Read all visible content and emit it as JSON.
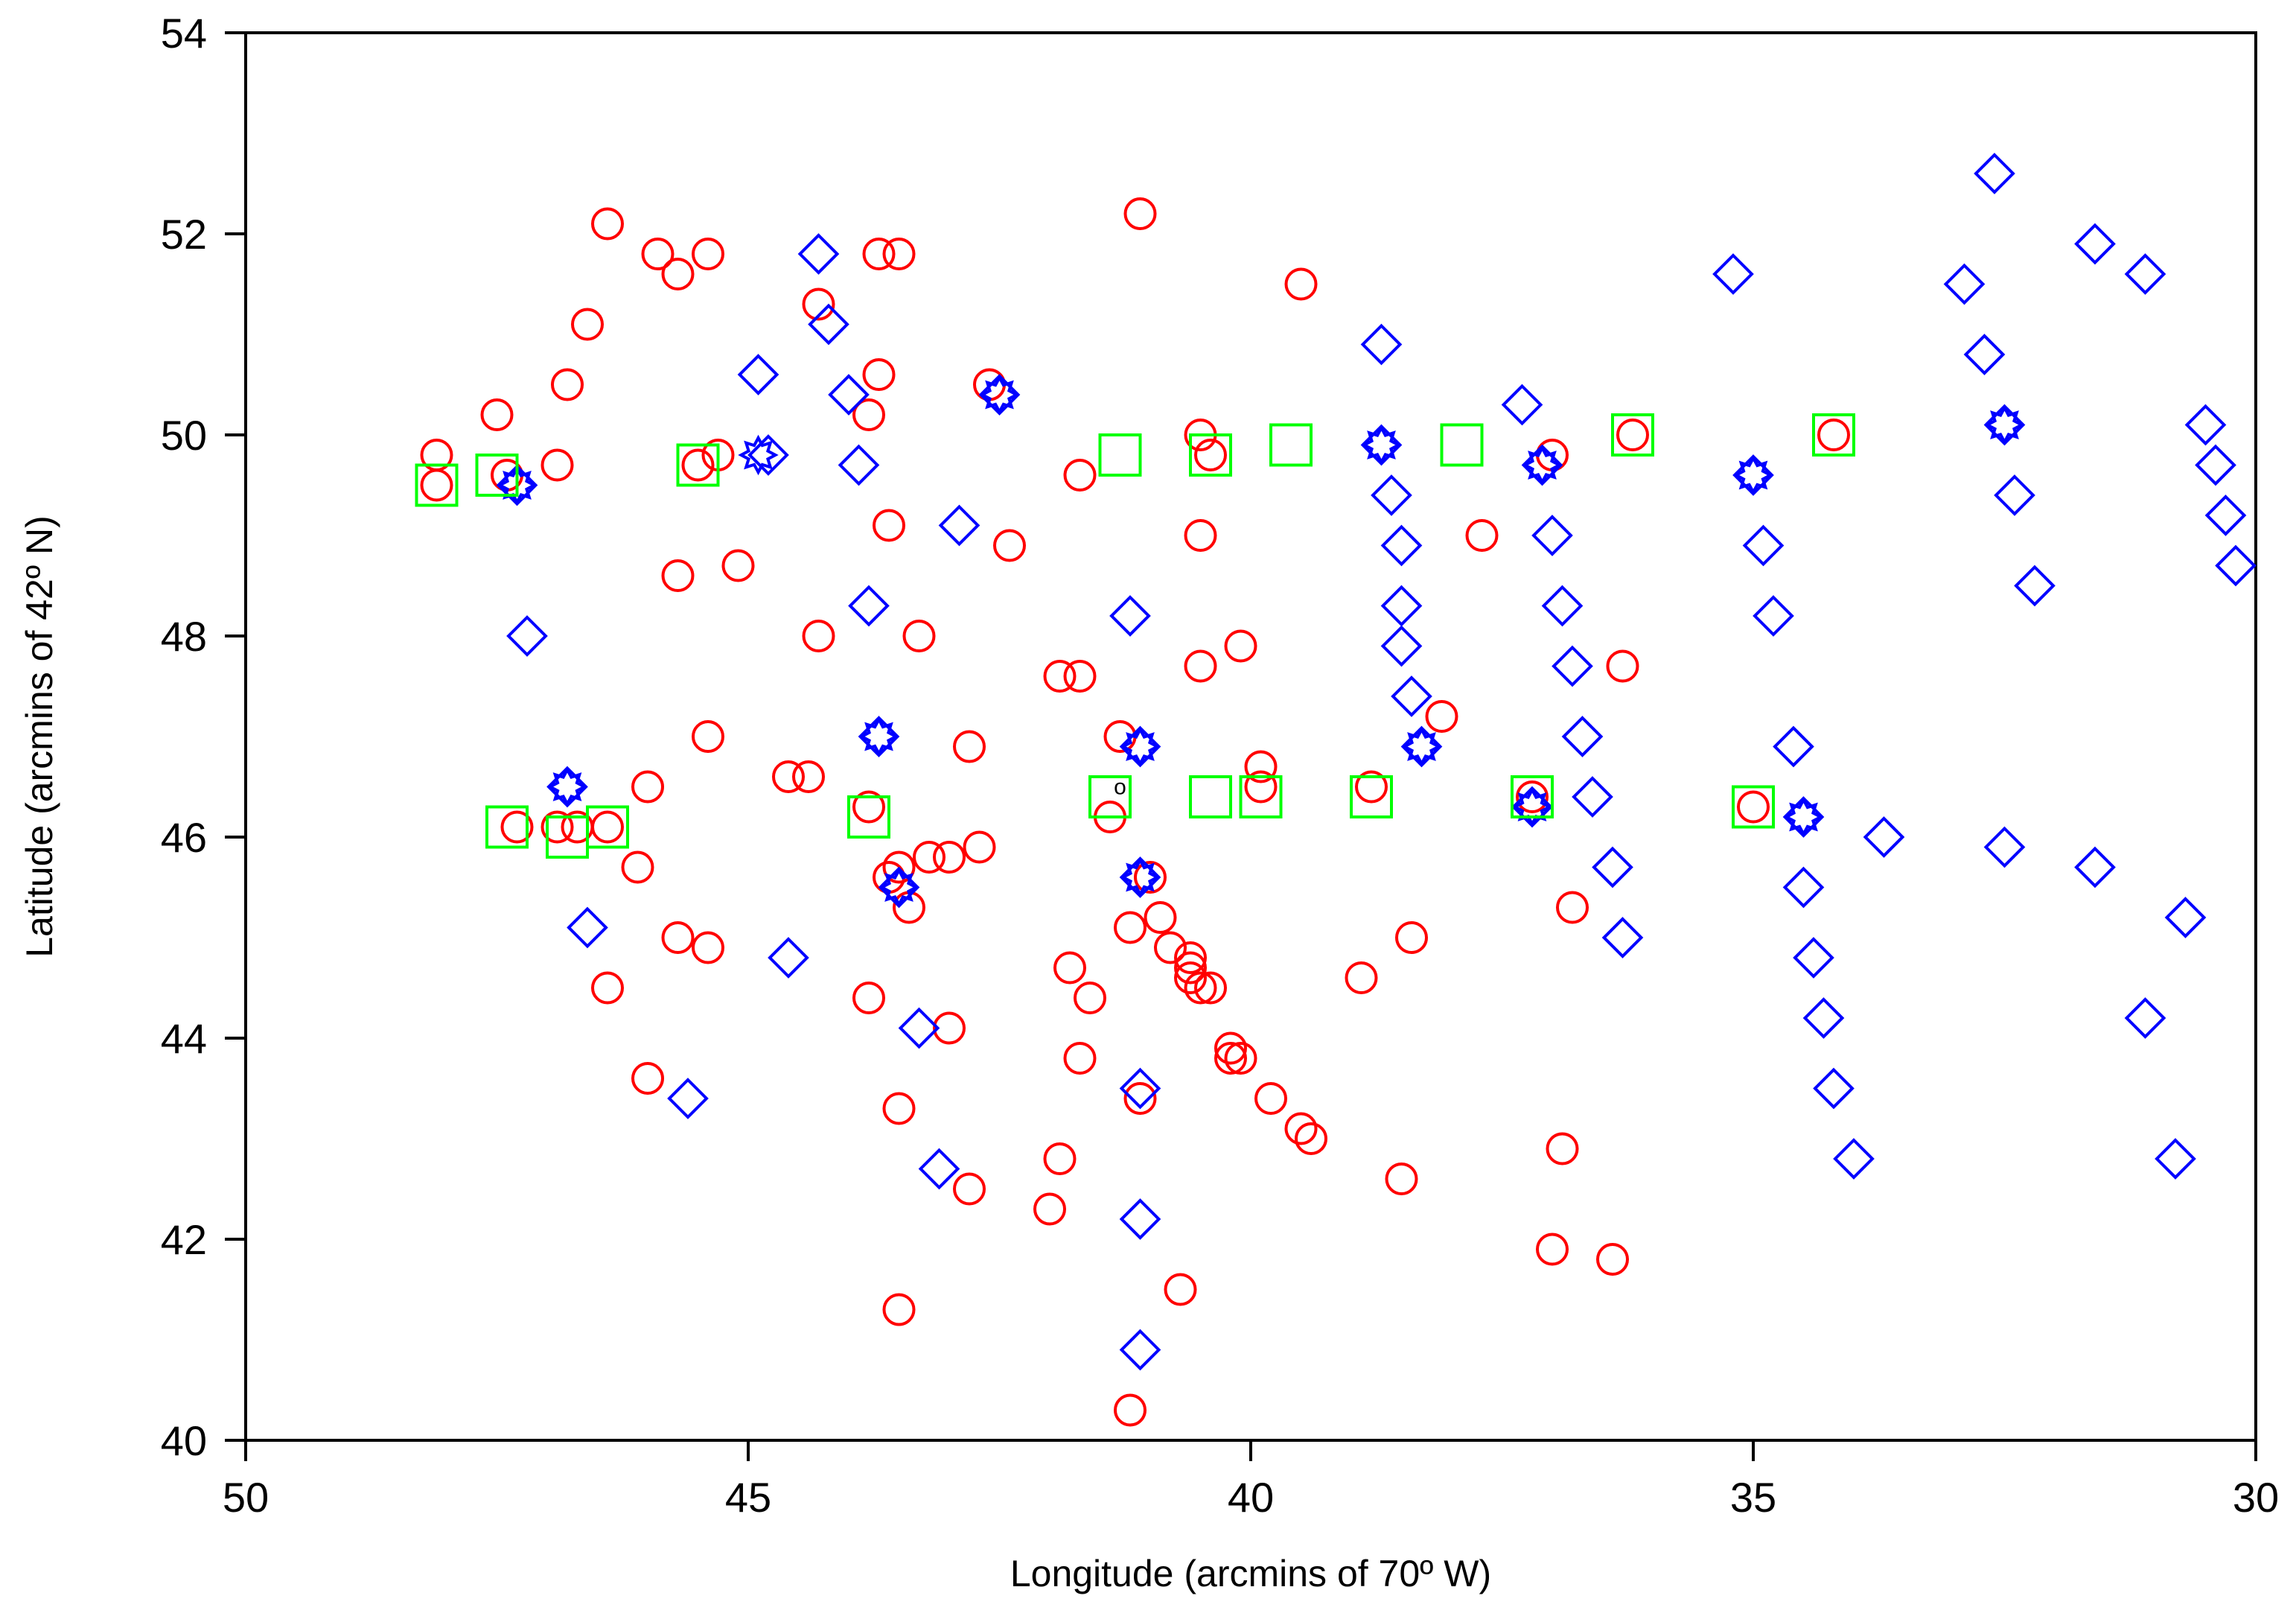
{
  "chart_data": {
    "type": "scatter",
    "xlabel": "Longitude (arcmins of 70º W)",
    "ylabel": "Latitude (arcmins of 42º N)",
    "xlim": [
      50,
      30
    ],
    "ylim": [
      40,
      54
    ],
    "x_reversed": true,
    "xticks": [
      50,
      45,
      40,
      35,
      30
    ],
    "yticks": [
      40,
      42,
      44,
      46,
      48,
      50,
      52,
      54
    ],
    "grid": false,
    "legend": "none",
    "series": [
      {
        "marker": "circle",
        "color": "#ff0000",
        "points": [
          [
            48.1,
            49.8
          ],
          [
            48.1,
            49.5
          ],
          [
            47.5,
            50.2
          ],
          [
            47.4,
            49.6
          ],
          [
            46.9,
            49.7
          ],
          [
            46.8,
            50.5
          ],
          [
            46.6,
            51.1
          ],
          [
            46.4,
            52.1
          ],
          [
            45.9,
            51.8
          ],
          [
            45.7,
            51.6
          ],
          [
            45.4,
            51.8
          ],
          [
            45.5,
            49.7
          ],
          [
            45.3,
            49.8
          ],
          [
            45.7,
            48.6
          ],
          [
            45.1,
            48.7
          ],
          [
            43.7,
            51.8
          ],
          [
            43.5,
            51.8
          ],
          [
            44.3,
            51.3
          ],
          [
            43.7,
            50.6
          ],
          [
            43.8,
            50.2
          ],
          [
            43.6,
            49.1
          ],
          [
            44.3,
            48.0
          ],
          [
            43.3,
            48.0
          ],
          [
            42.6,
            50.5
          ],
          [
            42.4,
            48.9
          ],
          [
            41.7,
            49.6
          ],
          [
            41.1,
            52.2
          ],
          [
            39.5,
            51.5
          ],
          [
            40.5,
            50.0
          ],
          [
            40.4,
            49.8
          ],
          [
            40.5,
            49.0
          ],
          [
            40.1,
            47.9
          ],
          [
            40.5,
            47.7
          ],
          [
            41.9,
            47.6
          ],
          [
            41.7,
            47.6
          ],
          [
            41.3,
            47.0
          ],
          [
            42.8,
            46.9
          ],
          [
            45.4,
            47.0
          ],
          [
            46.0,
            46.5
          ],
          [
            44.6,
            46.6
          ],
          [
            44.4,
            46.6
          ],
          [
            43.8,
            46.3
          ],
          [
            47.3,
            46.1
          ],
          [
            46.9,
            46.1
          ],
          [
            46.7,
            46.1
          ],
          [
            46.4,
            46.1
          ],
          [
            46.1,
            45.7
          ],
          [
            45.7,
            45.0
          ],
          [
            45.4,
            44.9
          ],
          [
            46.4,
            44.5
          ],
          [
            46.0,
            43.6
          ],
          [
            43.6,
            45.6
          ],
          [
            43.5,
            45.7
          ],
          [
            43.2,
            45.8
          ],
          [
            43.0,
            45.8
          ],
          [
            42.7,
            45.9
          ],
          [
            43.4,
            45.3
          ],
          [
            43.8,
            44.4
          ],
          [
            43.0,
            44.1
          ],
          [
            42.8,
            42.5
          ],
          [
            43.5,
            43.3
          ],
          [
            43.5,
            41.3
          ],
          [
            41.9,
            42.8
          ],
          [
            42.0,
            42.3
          ],
          [
            41.8,
            44.7
          ],
          [
            41.6,
            44.4
          ],
          [
            41.7,
            43.8
          ],
          [
            41.4,
            46.2
          ],
          [
            41.2,
            45.1
          ],
          [
            41.0,
            45.6
          ],
          [
            40.9,
            45.2
          ],
          [
            40.8,
            44.9
          ],
          [
            40.6,
            44.8
          ],
          [
            40.6,
            44.7
          ],
          [
            40.6,
            44.6
          ],
          [
            40.5,
            44.5
          ],
          [
            40.4,
            44.5
          ],
          [
            40.2,
            43.9
          ],
          [
            40.2,
            43.8
          ],
          [
            40.1,
            43.8
          ],
          [
            39.8,
            43.4
          ],
          [
            39.5,
            43.1
          ],
          [
            39.4,
            43.0
          ],
          [
            40.7,
            41.5
          ],
          [
            41.1,
            43.4
          ],
          [
            41.2,
            40.3
          ],
          [
            39.9,
            46.7
          ],
          [
            39.9,
            46.5
          ],
          [
            38.9,
            44.6
          ],
          [
            38.4,
            45.0
          ],
          [
            38.8,
            46.5
          ],
          [
            38.5,
            42.6
          ],
          [
            38.1,
            47.2
          ],
          [
            37.7,
            49.0
          ],
          [
            37.0,
            49.8
          ],
          [
            37.2,
            46.4
          ],
          [
            36.8,
            45.3
          ],
          [
            36.9,
            42.9
          ],
          [
            37.0,
            41.9
          ],
          [
            36.4,
            41.8
          ],
          [
            36.3,
            47.7
          ],
          [
            36.2,
            50.0
          ],
          [
            35.0,
            46.3
          ],
          [
            34.2,
            50.0
          ]
        ]
      },
      {
        "marker": "diamond",
        "color": "#0000ff",
        "points": [
          [
            47.3,
            49.5
          ],
          [
            47.2,
            48.0
          ],
          [
            46.8,
            46.5
          ],
          [
            46.6,
            45.1
          ],
          [
            45.6,
            43.4
          ],
          [
            44.9,
            50.6
          ],
          [
            44.8,
            49.8
          ],
          [
            44.6,
            44.8
          ],
          [
            44.3,
            51.8
          ],
          [
            44.2,
            51.1
          ],
          [
            44.0,
            50.4
          ],
          [
            43.9,
            49.7
          ],
          [
            43.8,
            48.3
          ],
          [
            43.7,
            47.0
          ],
          [
            43.5,
            45.5
          ],
          [
            43.3,
            44.1
          ],
          [
            43.1,
            42.7
          ],
          [
            42.9,
            49.1
          ],
          [
            42.5,
            50.4
          ],
          [
            41.2,
            48.2
          ],
          [
            41.1,
            46.9
          ],
          [
            41.1,
            45.6
          ],
          [
            41.1,
            43.5
          ],
          [
            41.1,
            42.2
          ],
          [
            41.1,
            40.9
          ],
          [
            38.7,
            50.9
          ],
          [
            38.7,
            49.9
          ],
          [
            38.6,
            49.4
          ],
          [
            38.5,
            48.9
          ],
          [
            38.5,
            48.3
          ],
          [
            38.5,
            47.9
          ],
          [
            38.4,
            47.4
          ],
          [
            38.3,
            46.9
          ],
          [
            37.3,
            50.3
          ],
          [
            37.1,
            49.7
          ],
          [
            37.0,
            49.0
          ],
          [
            36.9,
            48.3
          ],
          [
            36.8,
            47.7
          ],
          [
            36.7,
            47.0
          ],
          [
            36.6,
            46.4
          ],
          [
            36.4,
            45.7
          ],
          [
            36.3,
            45.0
          ],
          [
            37.2,
            46.3
          ],
          [
            35.2,
            51.6
          ],
          [
            35.0,
            49.6
          ],
          [
            34.9,
            48.9
          ],
          [
            34.8,
            48.2
          ],
          [
            34.6,
            46.9
          ],
          [
            34.5,
            46.2
          ],
          [
            34.5,
            45.5
          ],
          [
            34.4,
            44.8
          ],
          [
            34.3,
            44.2
          ],
          [
            34.2,
            43.5
          ],
          [
            34.0,
            42.8
          ],
          [
            33.7,
            46.0
          ],
          [
            32.9,
            51.5
          ],
          [
            32.7,
            50.8
          ],
          [
            32.6,
            52.6
          ],
          [
            32.5,
            50.1
          ],
          [
            32.4,
            49.4
          ],
          [
            32.2,
            48.5
          ],
          [
            32.5,
            45.9
          ],
          [
            31.6,
            51.9
          ],
          [
            31.1,
            51.6
          ],
          [
            31.6,
            45.7
          ],
          [
            31.1,
            44.2
          ],
          [
            30.8,
            42.8
          ],
          [
            30.7,
            45.2
          ],
          [
            30.5,
            50.1
          ],
          [
            30.4,
            49.7
          ],
          [
            30.3,
            49.2
          ],
          [
            30.2,
            48.7
          ]
        ]
      },
      {
        "marker": "star",
        "color": "#0000ff",
        "points": [
          [
            47.3,
            49.5
          ],
          [
            46.8,
            46.5
          ],
          [
            44.9,
            49.8
          ],
          [
            43.7,
            47.0
          ],
          [
            43.5,
            45.5
          ],
          [
            42.5,
            50.4
          ],
          [
            41.1,
            46.9
          ],
          [
            41.1,
            45.6
          ],
          [
            38.7,
            49.9
          ],
          [
            38.3,
            46.9
          ],
          [
            37.1,
            49.7
          ],
          [
            37.2,
            46.3
          ],
          [
            35.0,
            49.6
          ],
          [
            34.5,
            46.2
          ],
          [
            32.5,
            50.1
          ]
        ]
      },
      {
        "marker": "square",
        "color": "#00ff00",
        "points": [
          [
            48.1,
            49.5
          ],
          [
            47.5,
            49.6
          ],
          [
            45.5,
            49.7
          ],
          [
            47.4,
            46.1
          ],
          [
            46.8,
            46.0
          ],
          [
            46.4,
            46.1
          ],
          [
            43.8,
            46.2
          ],
          [
            41.3,
            49.8
          ],
          [
            41.4,
            46.4
          ],
          [
            40.4,
            49.8
          ],
          [
            39.6,
            49.9
          ],
          [
            40.4,
            46.4
          ],
          [
            39.9,
            46.4
          ],
          [
            38.8,
            46.4
          ],
          [
            37.9,
            49.9
          ],
          [
            36.2,
            50.0
          ],
          [
            37.2,
            46.4
          ],
          [
            34.2,
            50.0
          ],
          [
            35.0,
            46.3
          ]
        ]
      }
    ],
    "annotations": [
      {
        "text": "o",
        "x": 41.3,
        "y": 46.5
      }
    ]
  }
}
